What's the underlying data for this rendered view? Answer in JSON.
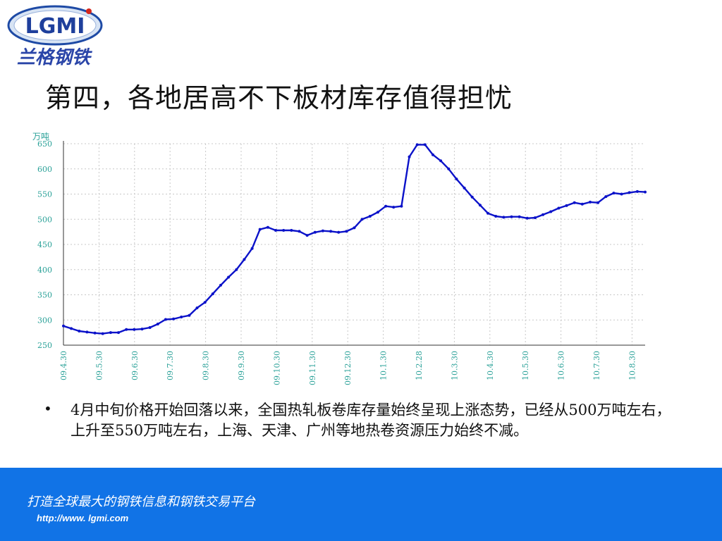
{
  "logo": {
    "text": "LGMI",
    "chinese": "兰格钢铁"
  },
  "slide": {
    "title": "第四，各地居高不下板材库存值得担忧",
    "bullet": "4月中旬价格开始回落以来，全国热轧板卷库存量始终呈现上涨态势，已经从500万吨左右，上升至550万吨左右，上海、天津、广州等地热卷资源压力始终不减。"
  },
  "footer": {
    "slogan": "打造全球最大的钢铁信息和钢铁交易平台",
    "url": "http://www. lgmi.com"
  },
  "colors": {
    "line": "#0b12c9",
    "axis_text": "#2aa198",
    "footer_bg": "#1173e6"
  },
  "chart_data": {
    "type": "line",
    "ylabel": "万吨",
    "ylim": [
      250,
      650
    ],
    "yticks": [
      650,
      600,
      550,
      500,
      450,
      400,
      350,
      300,
      250
    ],
    "grid": true,
    "xtick_labels": [
      "09.4.30",
      "09.5.30",
      "09.6.30",
      "09.7.30",
      "09.8.30",
      "09.9.30",
      "09.10.30",
      "09.11.30",
      "09.12.30",
      "10.1.30",
      "10.2.28",
      "10.3.30",
      "10.4.30",
      "10.5.30",
      "10.6.30",
      "10.7.30",
      "10.8.30"
    ],
    "values": [
      288,
      283,
      278,
      276,
      274,
      273,
      275,
      275,
      281,
      281,
      282,
      285,
      292,
      301,
      302,
      306,
      309,
      324,
      335,
      352,
      369,
      385,
      400,
      420,
      442,
      480,
      484,
      478,
      478,
      478,
      476,
      468,
      474,
      477,
      476,
      474,
      476,
      483,
      500,
      506,
      514,
      526,
      524,
      526,
      624,
      648,
      648,
      628,
      616,
      600,
      580,
      562,
      544,
      528,
      512,
      506,
      504,
      505,
      505,
      502,
      503,
      509,
      515,
      522,
      527,
      533,
      530,
      534,
      533,
      545,
      552,
      550,
      553,
      555,
      554
    ],
    "series": [
      {
        "name": "",
        "values": []
      }
    ]
  }
}
